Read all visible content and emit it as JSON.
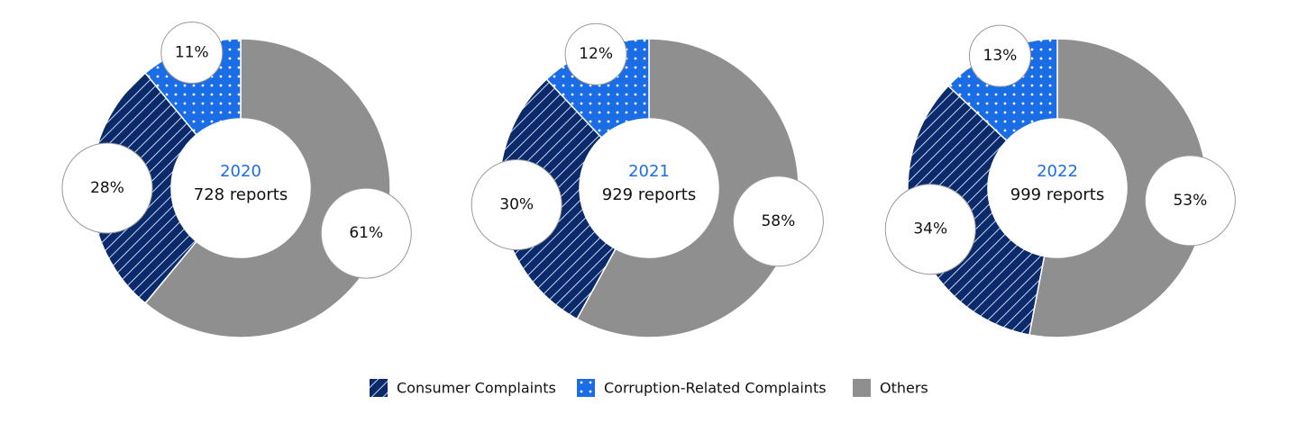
{
  "chart_data": [
    {
      "type": "pie",
      "title": "2020",
      "subtitle": "728 reports",
      "categories": [
        "Others",
        "Consumer Complaints",
        "Corruption-Related Complaints"
      ],
      "values": [
        61,
        28,
        11
      ],
      "value_labels": [
        "61%",
        "28%",
        "11%"
      ],
      "colors": [
        "#8f8f8f",
        "#0b2a6b",
        "#1b6de6"
      ],
      "patterns": [
        "solid",
        "stripes",
        "dots"
      ]
    },
    {
      "type": "pie",
      "title": "2021",
      "subtitle": "929 reports",
      "categories": [
        "Others",
        "Consumer Complaints",
        "Corruption-Related Complaints"
      ],
      "values": [
        58,
        30,
        12
      ],
      "value_labels": [
        "58%",
        "30%",
        "12%"
      ],
      "colors": [
        "#8f8f8f",
        "#0b2a6b",
        "#1b6de6"
      ],
      "patterns": [
        "solid",
        "stripes",
        "dots"
      ]
    },
    {
      "type": "pie",
      "title": "2022",
      "subtitle": "999 reports",
      "categories": [
        "Others",
        "Consumer Complaints",
        "Corruption-Related Complaints"
      ],
      "values": [
        53,
        34,
        13
      ],
      "value_labels": [
        "53%",
        "34%",
        "13%"
      ],
      "colors": [
        "#8f8f8f",
        "#0b2a6b",
        "#1b6de6"
      ],
      "patterns": [
        "solid",
        "stripes",
        "dots"
      ]
    }
  ]
}
